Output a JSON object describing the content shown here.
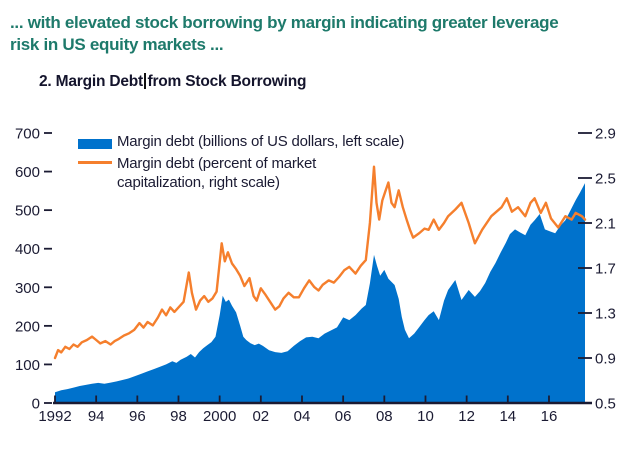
{
  "header": {
    "text": "... with elevated stock borrowing by margin indicating greater leverage\nrisk in US equity markets ...",
    "color": "#1e7a6b"
  },
  "panel": {
    "title_part1": "2. Margin Debt",
    "title_part2": "from Stock Borrowing"
  },
  "legend": {
    "items": [
      {
        "label": "Margin debt (billions of US dollars, left scale)",
        "swatch": "area-swatch",
        "color": "#0072cc"
      },
      {
        "label": "Margin debt (percent of market\ncapitalization, right scale)",
        "swatch": "line-swatch",
        "color": "#f57f2d"
      }
    ]
  },
  "colors": {
    "area_blue": "#0072cc",
    "line_orange": "#f57f2d",
    "axis_text": "#1b1b33",
    "axis_line": "#1b1b33",
    "headline_teal": "#1e7a6b"
  },
  "chart_data": {
    "type": "area",
    "title": "2. Margin Debt from Stock Borrowing",
    "grid": false,
    "legend_position": "top-left",
    "x_range": [
      1992,
      2017.75
    ],
    "x_ticks": [
      1992,
      1994,
      1996,
      1998,
      2000,
      2002,
      2004,
      2006,
      2008,
      2010,
      2012,
      2014,
      2016
    ],
    "x_tick_labels": [
      "1992",
      "94",
      "96",
      "98",
      "2000",
      "02",
      "04",
      "06",
      "08",
      "10",
      "12",
      "14",
      "16"
    ],
    "left_axis": {
      "range": [
        0,
        700
      ],
      "ticks": [
        0,
        100,
        200,
        300,
        400,
        500,
        600,
        700
      ],
      "tick_labels": [
        "0",
        "100",
        "200",
        "300",
        "400",
        "500",
        "600",
        "700"
      ]
    },
    "right_axis": {
      "range": [
        0.5,
        2.9
      ],
      "ticks": [
        0.5,
        0.9,
        1.3,
        1.7,
        2.1,
        2.5,
        2.9
      ],
      "tick_labels": [
        "0.5",
        "0.9",
        "1.3",
        "1.7",
        "2.1",
        "2.5",
        "2.9"
      ]
    },
    "series": [
      {
        "name": "Margin debt (billions of US dollars, left scale)",
        "type": "area",
        "axis": "left",
        "color": "#0072cc",
        "points": [
          [
            1992.0,
            28
          ],
          [
            1992.3,
            33
          ],
          [
            1992.6,
            36
          ],
          [
            1992.9,
            40
          ],
          [
            1993.2,
            44
          ],
          [
            1993.5,
            47
          ],
          [
            1993.8,
            50
          ],
          [
            1994.1,
            52
          ],
          [
            1994.4,
            50
          ],
          [
            1994.7,
            53
          ],
          [
            1995.0,
            56
          ],
          [
            1995.3,
            60
          ],
          [
            1995.6,
            64
          ],
          [
            1995.9,
            70
          ],
          [
            1996.2,
            76
          ],
          [
            1996.5,
            82
          ],
          [
            1996.8,
            88
          ],
          [
            1997.1,
            94
          ],
          [
            1997.4,
            100
          ],
          [
            1997.7,
            108
          ],
          [
            1997.9,
            104
          ],
          [
            1998.1,
            112
          ],
          [
            1998.4,
            120
          ],
          [
            1998.6,
            127
          ],
          [
            1998.8,
            118
          ],
          [
            1999.0,
            132
          ],
          [
            1999.2,
            142
          ],
          [
            1999.4,
            150
          ],
          [
            1999.6,
            158
          ],
          [
            1999.8,
            172
          ],
          [
            2000.0,
            228
          ],
          [
            2000.15,
            278
          ],
          [
            2000.3,
            262
          ],
          [
            2000.45,
            268
          ],
          [
            2000.6,
            252
          ],
          [
            2000.8,
            235
          ],
          [
            2001.0,
            200
          ],
          [
            2001.15,
            172
          ],
          [
            2001.3,
            163
          ],
          [
            2001.5,
            155
          ],
          [
            2001.7,
            150
          ],
          [
            2001.9,
            154
          ],
          [
            2002.1,
            148
          ],
          [
            2002.4,
            137
          ],
          [
            2002.7,
            132
          ],
          [
            2003.0,
            130
          ],
          [
            2003.3,
            134
          ],
          [
            2003.6,
            148
          ],
          [
            2003.9,
            160
          ],
          [
            2004.2,
            170
          ],
          [
            2004.5,
            172
          ],
          [
            2004.8,
            168
          ],
          [
            2005.1,
            180
          ],
          [
            2005.4,
            188
          ],
          [
            2005.7,
            196
          ],
          [
            2006.0,
            222
          ],
          [
            2006.3,
            215
          ],
          [
            2006.6,
            228
          ],
          [
            2006.9,
            245
          ],
          [
            2007.1,
            254
          ],
          [
            2007.3,
            310
          ],
          [
            2007.5,
            384
          ],
          [
            2007.65,
            355
          ],
          [
            2007.8,
            330
          ],
          [
            2008.0,
            345
          ],
          [
            2008.2,
            322
          ],
          [
            2008.5,
            306
          ],
          [
            2008.7,
            270
          ],
          [
            2008.85,
            223
          ],
          [
            2009.0,
            190
          ],
          [
            2009.2,
            168
          ],
          [
            2009.45,
            180
          ],
          [
            2009.7,
            197
          ],
          [
            2009.95,
            215
          ],
          [
            2010.15,
            228
          ],
          [
            2010.4,
            238
          ],
          [
            2010.65,
            215
          ],
          [
            2010.9,
            265
          ],
          [
            2011.1,
            293
          ],
          [
            2011.45,
            319
          ],
          [
            2011.75,
            267
          ],
          [
            2012.1,
            293
          ],
          [
            2012.4,
            275
          ],
          [
            2012.65,
            290
          ],
          [
            2012.9,
            311
          ],
          [
            2013.15,
            340
          ],
          [
            2013.4,
            363
          ],
          [
            2013.65,
            390
          ],
          [
            2013.9,
            415
          ],
          [
            2014.1,
            438
          ],
          [
            2014.35,
            450
          ],
          [
            2014.6,
            442
          ],
          [
            2014.85,
            435
          ],
          [
            2015.1,
            462
          ],
          [
            2015.3,
            474
          ],
          [
            2015.55,
            490
          ],
          [
            2015.8,
            450
          ],
          [
            2016.05,
            445
          ],
          [
            2016.3,
            440
          ],
          [
            2016.55,
            460
          ],
          [
            2016.8,
            474
          ],
          [
            2017.05,
            500
          ],
          [
            2017.3,
            526
          ],
          [
            2017.5,
            545
          ],
          [
            2017.75,
            570
          ]
        ]
      },
      {
        "name": "Margin debt (percent of market capitalization, right scale)",
        "type": "line",
        "axis": "right",
        "color": "#f57f2d",
        "points": [
          [
            1992.0,
            0.9
          ],
          [
            1992.15,
            0.97
          ],
          [
            1992.3,
            0.95
          ],
          [
            1992.5,
            1.0
          ],
          [
            1992.7,
            0.98
          ],
          [
            1992.9,
            1.02
          ],
          [
            1993.1,
            1.0
          ],
          [
            1993.3,
            1.04
          ],
          [
            1993.55,
            1.06
          ],
          [
            1993.8,
            1.09
          ],
          [
            1994.0,
            1.06
          ],
          [
            1994.2,
            1.03
          ],
          [
            1994.45,
            1.05
          ],
          [
            1994.7,
            1.02
          ],
          [
            1994.9,
            1.05
          ],
          [
            1995.1,
            1.07
          ],
          [
            1995.35,
            1.1
          ],
          [
            1995.6,
            1.12
          ],
          [
            1995.85,
            1.15
          ],
          [
            1996.1,
            1.21
          ],
          [
            1996.3,
            1.17
          ],
          [
            1996.5,
            1.22
          ],
          [
            1996.75,
            1.19
          ],
          [
            1997.0,
            1.26
          ],
          [
            1997.2,
            1.33
          ],
          [
            1997.4,
            1.28
          ],
          [
            1997.6,
            1.35
          ],
          [
            1997.8,
            1.31
          ],
          [
            1998.0,
            1.35
          ],
          [
            1998.25,
            1.4
          ],
          [
            1998.5,
            1.66
          ],
          [
            1998.65,
            1.48
          ],
          [
            1998.85,
            1.33
          ],
          [
            1999.05,
            1.41
          ],
          [
            1999.25,
            1.45
          ],
          [
            1999.45,
            1.4
          ],
          [
            1999.65,
            1.43
          ],
          [
            1999.85,
            1.49
          ],
          [
            2000.1,
            1.92
          ],
          [
            2000.25,
            1.76
          ],
          [
            2000.4,
            1.84
          ],
          [
            2000.6,
            1.74
          ],
          [
            2000.8,
            1.69
          ],
          [
            2001.0,
            1.63
          ],
          [
            2001.2,
            1.54
          ],
          [
            2001.45,
            1.61
          ],
          [
            2001.65,
            1.45
          ],
          [
            2001.8,
            1.41
          ],
          [
            2002.0,
            1.52
          ],
          [
            2002.2,
            1.47
          ],
          [
            2002.45,
            1.4
          ],
          [
            2002.7,
            1.33
          ],
          [
            2002.9,
            1.36
          ],
          [
            2003.1,
            1.43
          ],
          [
            2003.35,
            1.48
          ],
          [
            2003.6,
            1.44
          ],
          [
            2003.85,
            1.44
          ],
          [
            2004.1,
            1.52
          ],
          [
            2004.35,
            1.59
          ],
          [
            2004.6,
            1.53
          ],
          [
            2004.8,
            1.5
          ],
          [
            2005.0,
            1.55
          ],
          [
            2005.3,
            1.59
          ],
          [
            2005.55,
            1.57
          ],
          [
            2005.8,
            1.62
          ],
          [
            2006.05,
            1.68
          ],
          [
            2006.3,
            1.71
          ],
          [
            2006.6,
            1.65
          ],
          [
            2006.85,
            1.72
          ],
          [
            2007.1,
            1.77
          ],
          [
            2007.3,
            2.1
          ],
          [
            2007.5,
            2.6
          ],
          [
            2007.62,
            2.28
          ],
          [
            2007.75,
            2.13
          ],
          [
            2007.9,
            2.3
          ],
          [
            2008.05,
            2.38
          ],
          [
            2008.2,
            2.46
          ],
          [
            2008.35,
            2.28
          ],
          [
            2008.5,
            2.24
          ],
          [
            2008.7,
            2.39
          ],
          [
            2008.9,
            2.24
          ],
          [
            2009.1,
            2.12
          ],
          [
            2009.25,
            2.04
          ],
          [
            2009.4,
            1.97
          ],
          [
            2009.7,
            2.01
          ],
          [
            2009.95,
            2.05
          ],
          [
            2010.15,
            2.04
          ],
          [
            2010.4,
            2.13
          ],
          [
            2010.65,
            2.04
          ],
          [
            2010.9,
            2.1
          ],
          [
            2011.1,
            2.16
          ],
          [
            2011.45,
            2.22
          ],
          [
            2011.75,
            2.28
          ],
          [
            2012.1,
            2.1
          ],
          [
            2012.4,
            1.92
          ],
          [
            2012.75,
            2.04
          ],
          [
            2013.2,
            2.16
          ],
          [
            2013.7,
            2.24
          ],
          [
            2013.95,
            2.32
          ],
          [
            2014.2,
            2.2
          ],
          [
            2014.5,
            2.24
          ],
          [
            2014.85,
            2.16
          ],
          [
            2015.1,
            2.28
          ],
          [
            2015.3,
            2.32
          ],
          [
            2015.6,
            2.19
          ],
          [
            2015.85,
            2.28
          ],
          [
            2016.1,
            2.14
          ],
          [
            2016.45,
            2.06
          ],
          [
            2016.8,
            2.16
          ],
          [
            2017.1,
            2.13
          ],
          [
            2017.3,
            2.19
          ],
          [
            2017.6,
            2.16
          ],
          [
            2017.75,
            2.13
          ]
        ]
      }
    ]
  }
}
